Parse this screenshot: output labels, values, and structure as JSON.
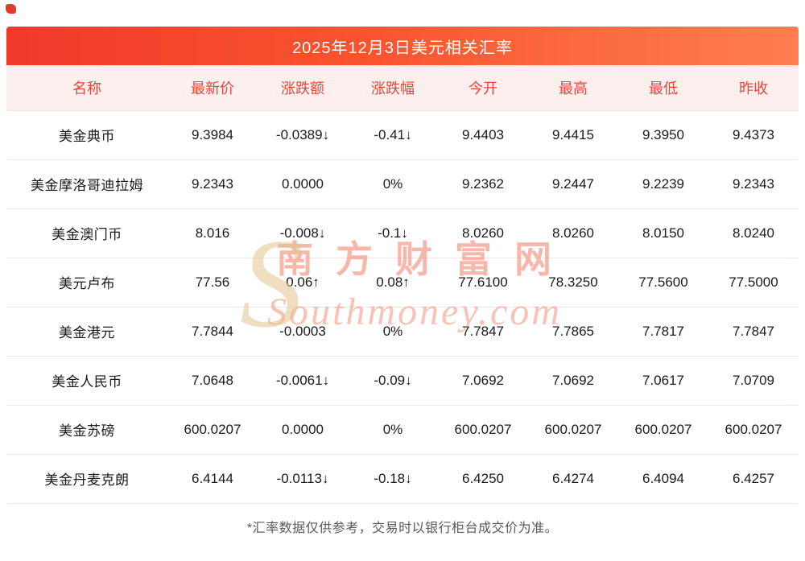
{
  "chart_data": {
    "type": "table",
    "title": "2025年12月3日美元相关汇率",
    "columns": [
      "名称",
      "最新价",
      "涨跌额",
      "涨跌幅",
      "今开",
      "最高",
      "最低",
      "昨收"
    ],
    "rows": [
      [
        "美金典币",
        "9.3984",
        "-0.0389↓",
        "-0.41↓",
        "9.4403",
        "9.4415",
        "9.3950",
        "9.4373"
      ],
      [
        "美金摩洛哥迪拉姆",
        "9.2343",
        "0.0000",
        "0%",
        "9.2362",
        "9.2447",
        "9.2239",
        "9.2343"
      ],
      [
        "美金澳门币",
        "8.016",
        "-0.008↓",
        "-0.1↓",
        "8.0260",
        "8.0260",
        "8.0150",
        "8.0240"
      ],
      [
        "美元卢布",
        "77.56",
        "0.06↑",
        "0.08↑",
        "77.6100",
        "78.3250",
        "77.5600",
        "77.5000"
      ],
      [
        "美金港元",
        "7.7844",
        "-0.0003",
        "0%",
        "7.7847",
        "7.7865",
        "7.7817",
        "7.7847"
      ],
      [
        "美金人民币",
        "7.0648",
        "-0.0061↓",
        "-0.09↓",
        "7.0692",
        "7.0692",
        "7.0617",
        "7.0709"
      ],
      [
        "美金苏磅",
        "600.0207",
        "0.0000",
        "0%",
        "600.0207",
        "600.0207",
        "600.0207",
        "600.0207"
      ],
      [
        "美金丹麦克朗",
        "6.4144",
        "-0.0113↓",
        "-0.18↓",
        "6.4250",
        "6.4274",
        "6.4094",
        "6.4257"
      ]
    ],
    "row_trends": [
      "down",
      "flat",
      "down",
      "up",
      "flat",
      "down",
      "flat",
      "down"
    ]
  },
  "footnote": "*汇率数据仅供参考，交易时以银行柜台成交价为准。",
  "watermark": {
    "s": "S",
    "cn": "南方财富网",
    "en": "Southmoney.com"
  },
  "colors": {
    "title_bg_start": "#f2392b",
    "title_bg_end": "#fe7e50",
    "header_bg": "#fcefee",
    "header_text": "#e2483c",
    "up": "#f43a25",
    "down": "#0fa050",
    "flat": "#1a1a1a"
  },
  "icons": {
    "corner_mark": "red-corner-mark",
    "up_arrow": "↑",
    "down_arrow": "↓"
  }
}
